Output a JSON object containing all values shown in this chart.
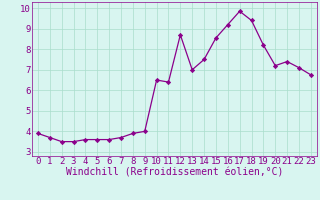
{
  "x": [
    0,
    1,
    2,
    3,
    4,
    5,
    6,
    7,
    8,
    9,
    10,
    11,
    12,
    13,
    14,
    15,
    16,
    17,
    18,
    19,
    20,
    21,
    22,
    23
  ],
  "y": [
    3.9,
    3.7,
    3.5,
    3.5,
    3.6,
    3.6,
    3.6,
    3.7,
    3.9,
    4.0,
    6.5,
    6.4,
    8.7,
    7.0,
    7.5,
    8.55,
    9.2,
    9.85,
    9.4,
    8.2,
    7.2,
    7.4,
    7.1,
    6.75
  ],
  "line_color": "#8B008B",
  "marker": "D",
  "marker_size": 2.2,
  "bg_color": "#d8f5f0",
  "grid_color": "#aaddcc",
  "xlabel": "Windchill (Refroidissement éolien,°C)",
  "xlabel_color": "#8B008B",
  "tick_color": "#8B008B",
  "ylim": [
    2.8,
    10.3
  ],
  "yticks": [
    3,
    4,
    5,
    6,
    7,
    8,
    9,
    10
  ],
  "xlim": [
    -0.5,
    23.5
  ],
  "xticks": [
    0,
    1,
    2,
    3,
    4,
    5,
    6,
    7,
    8,
    9,
    10,
    11,
    12,
    13,
    14,
    15,
    16,
    17,
    18,
    19,
    20,
    21,
    22,
    23
  ],
  "font_family": "monospace",
  "xlabel_fontsize": 7,
  "tick_fontsize": 6.5
}
